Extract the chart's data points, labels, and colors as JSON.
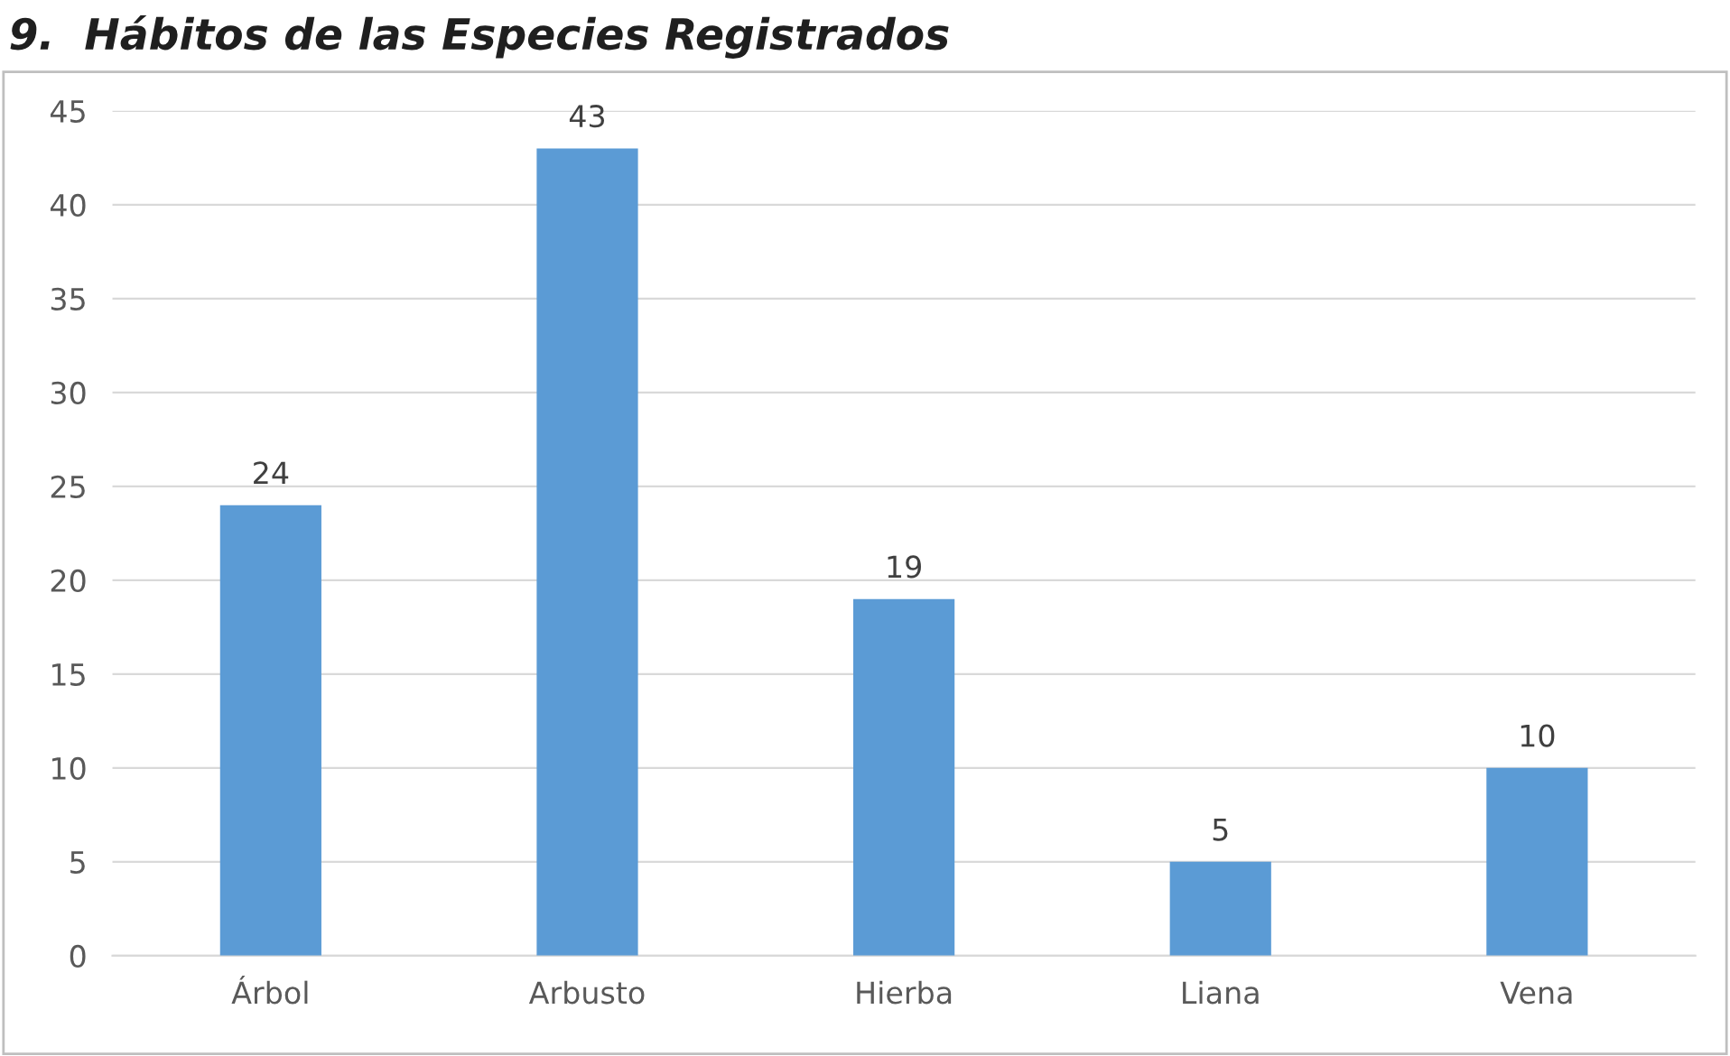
{
  "chart_data": {
    "type": "bar",
    "title": "9.  Hábitos de las Especies Registrados",
    "categories": [
      "Árbol",
      "Arbusto",
      "Hierba",
      "Liana",
      "Vena"
    ],
    "values": [
      24,
      43,
      19,
      5,
      10
    ],
    "color": "#5b9bd5",
    "ylim": [
      0,
      45
    ],
    "yticks": [
      0,
      5,
      10,
      15,
      20,
      25,
      30,
      35,
      40,
      45
    ],
    "grid": "y",
    "data_labels": true
  }
}
